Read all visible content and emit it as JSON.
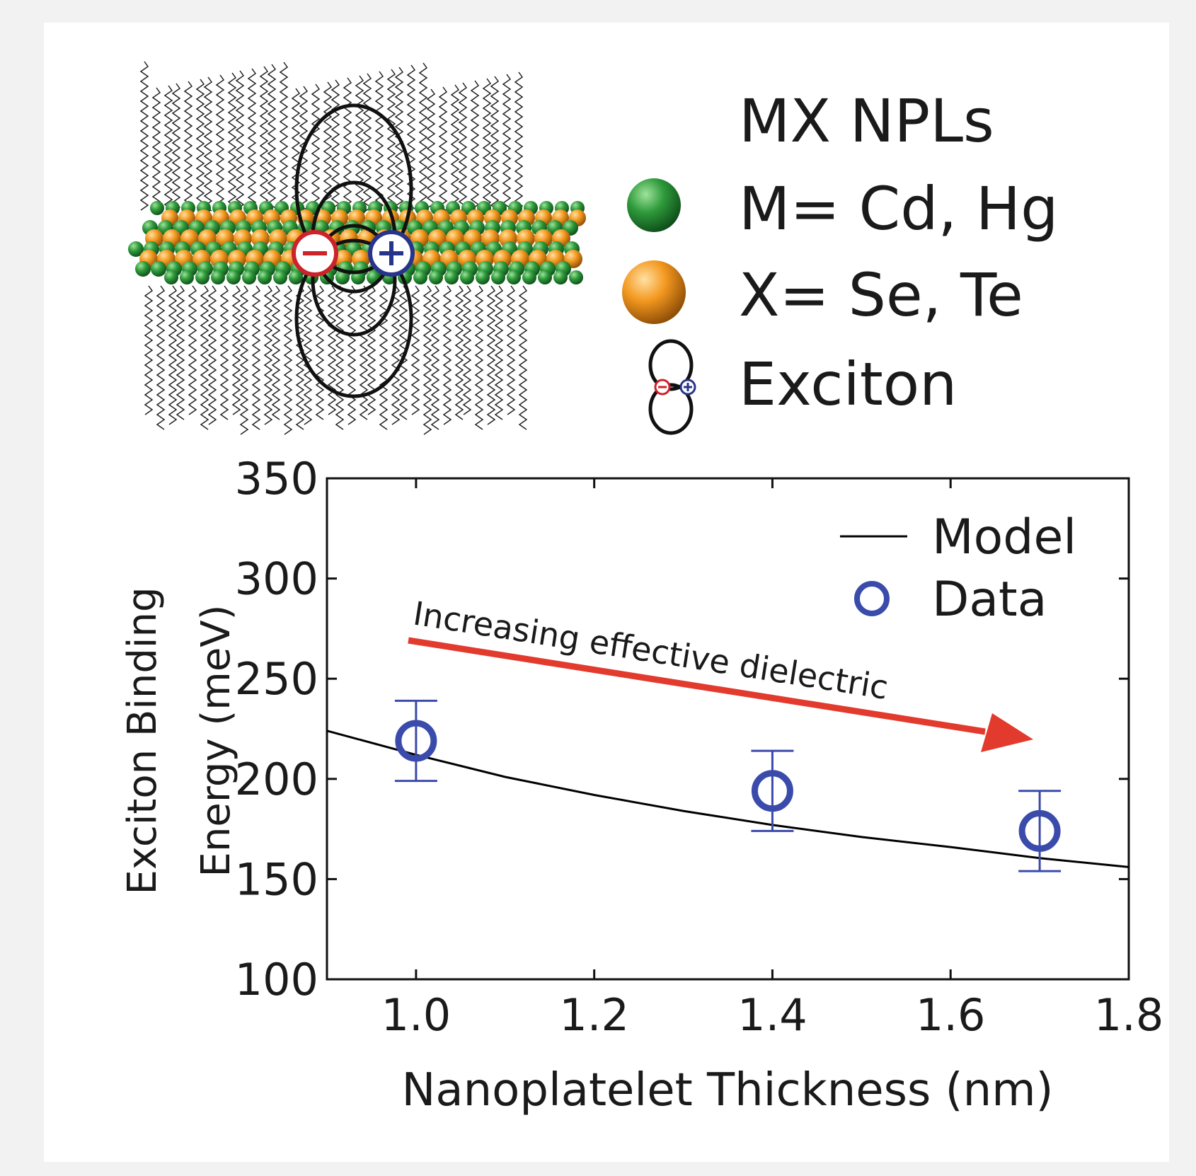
{
  "legend_top": {
    "title": "MX NPLs",
    "metal": "M= Cd, Hg",
    "chalcogen": "X= Se, Te",
    "exciton": "Exciton"
  },
  "colors": {
    "metal": "#2e8b3a",
    "chalcogen": "#f0951e",
    "electron": "#cc2229",
    "hole": "#27348b",
    "data": "#3b4bab",
    "arrow": "#e23b2e",
    "model": "#000000"
  },
  "annotation": "Increasing effective dielectric",
  "chart_data": {
    "type": "scatter",
    "xlabel": "Nanoplatelet Thickness (nm)",
    "ylabel_line1": "Exciton Binding",
    "ylabel_line2": "Energy (meV)",
    "xlim": [
      0.9,
      1.8
    ],
    "ylim": [
      100,
      350
    ],
    "xticks": [
      1.0,
      1.2,
      1.4,
      1.6,
      1.8
    ],
    "xtick_labels": [
      "1.0",
      "1.2",
      "1.4",
      "1.6",
      "1.8"
    ],
    "yticks": [
      100,
      150,
      200,
      250,
      300,
      350
    ],
    "ytick_labels": [
      "100",
      "150",
      "200",
      "250",
      "300",
      "350"
    ],
    "legend": {
      "model": "Model",
      "data": "Data",
      "position": "top-right"
    },
    "series": [
      {
        "name": "Model",
        "kind": "line",
        "x": [
          0.9,
          1.0,
          1.1,
          1.2,
          1.3,
          1.4,
          1.5,
          1.6,
          1.7,
          1.8
        ],
        "y": [
          224,
          212,
          201,
          192,
          184,
          177,
          171,
          166,
          160.5,
          156
        ]
      },
      {
        "name": "Data",
        "kind": "points",
        "x": [
          1.0,
          1.4,
          1.7
        ],
        "y": [
          219,
          194,
          174
        ],
        "err": [
          20,
          20,
          20
        ]
      }
    ]
  }
}
